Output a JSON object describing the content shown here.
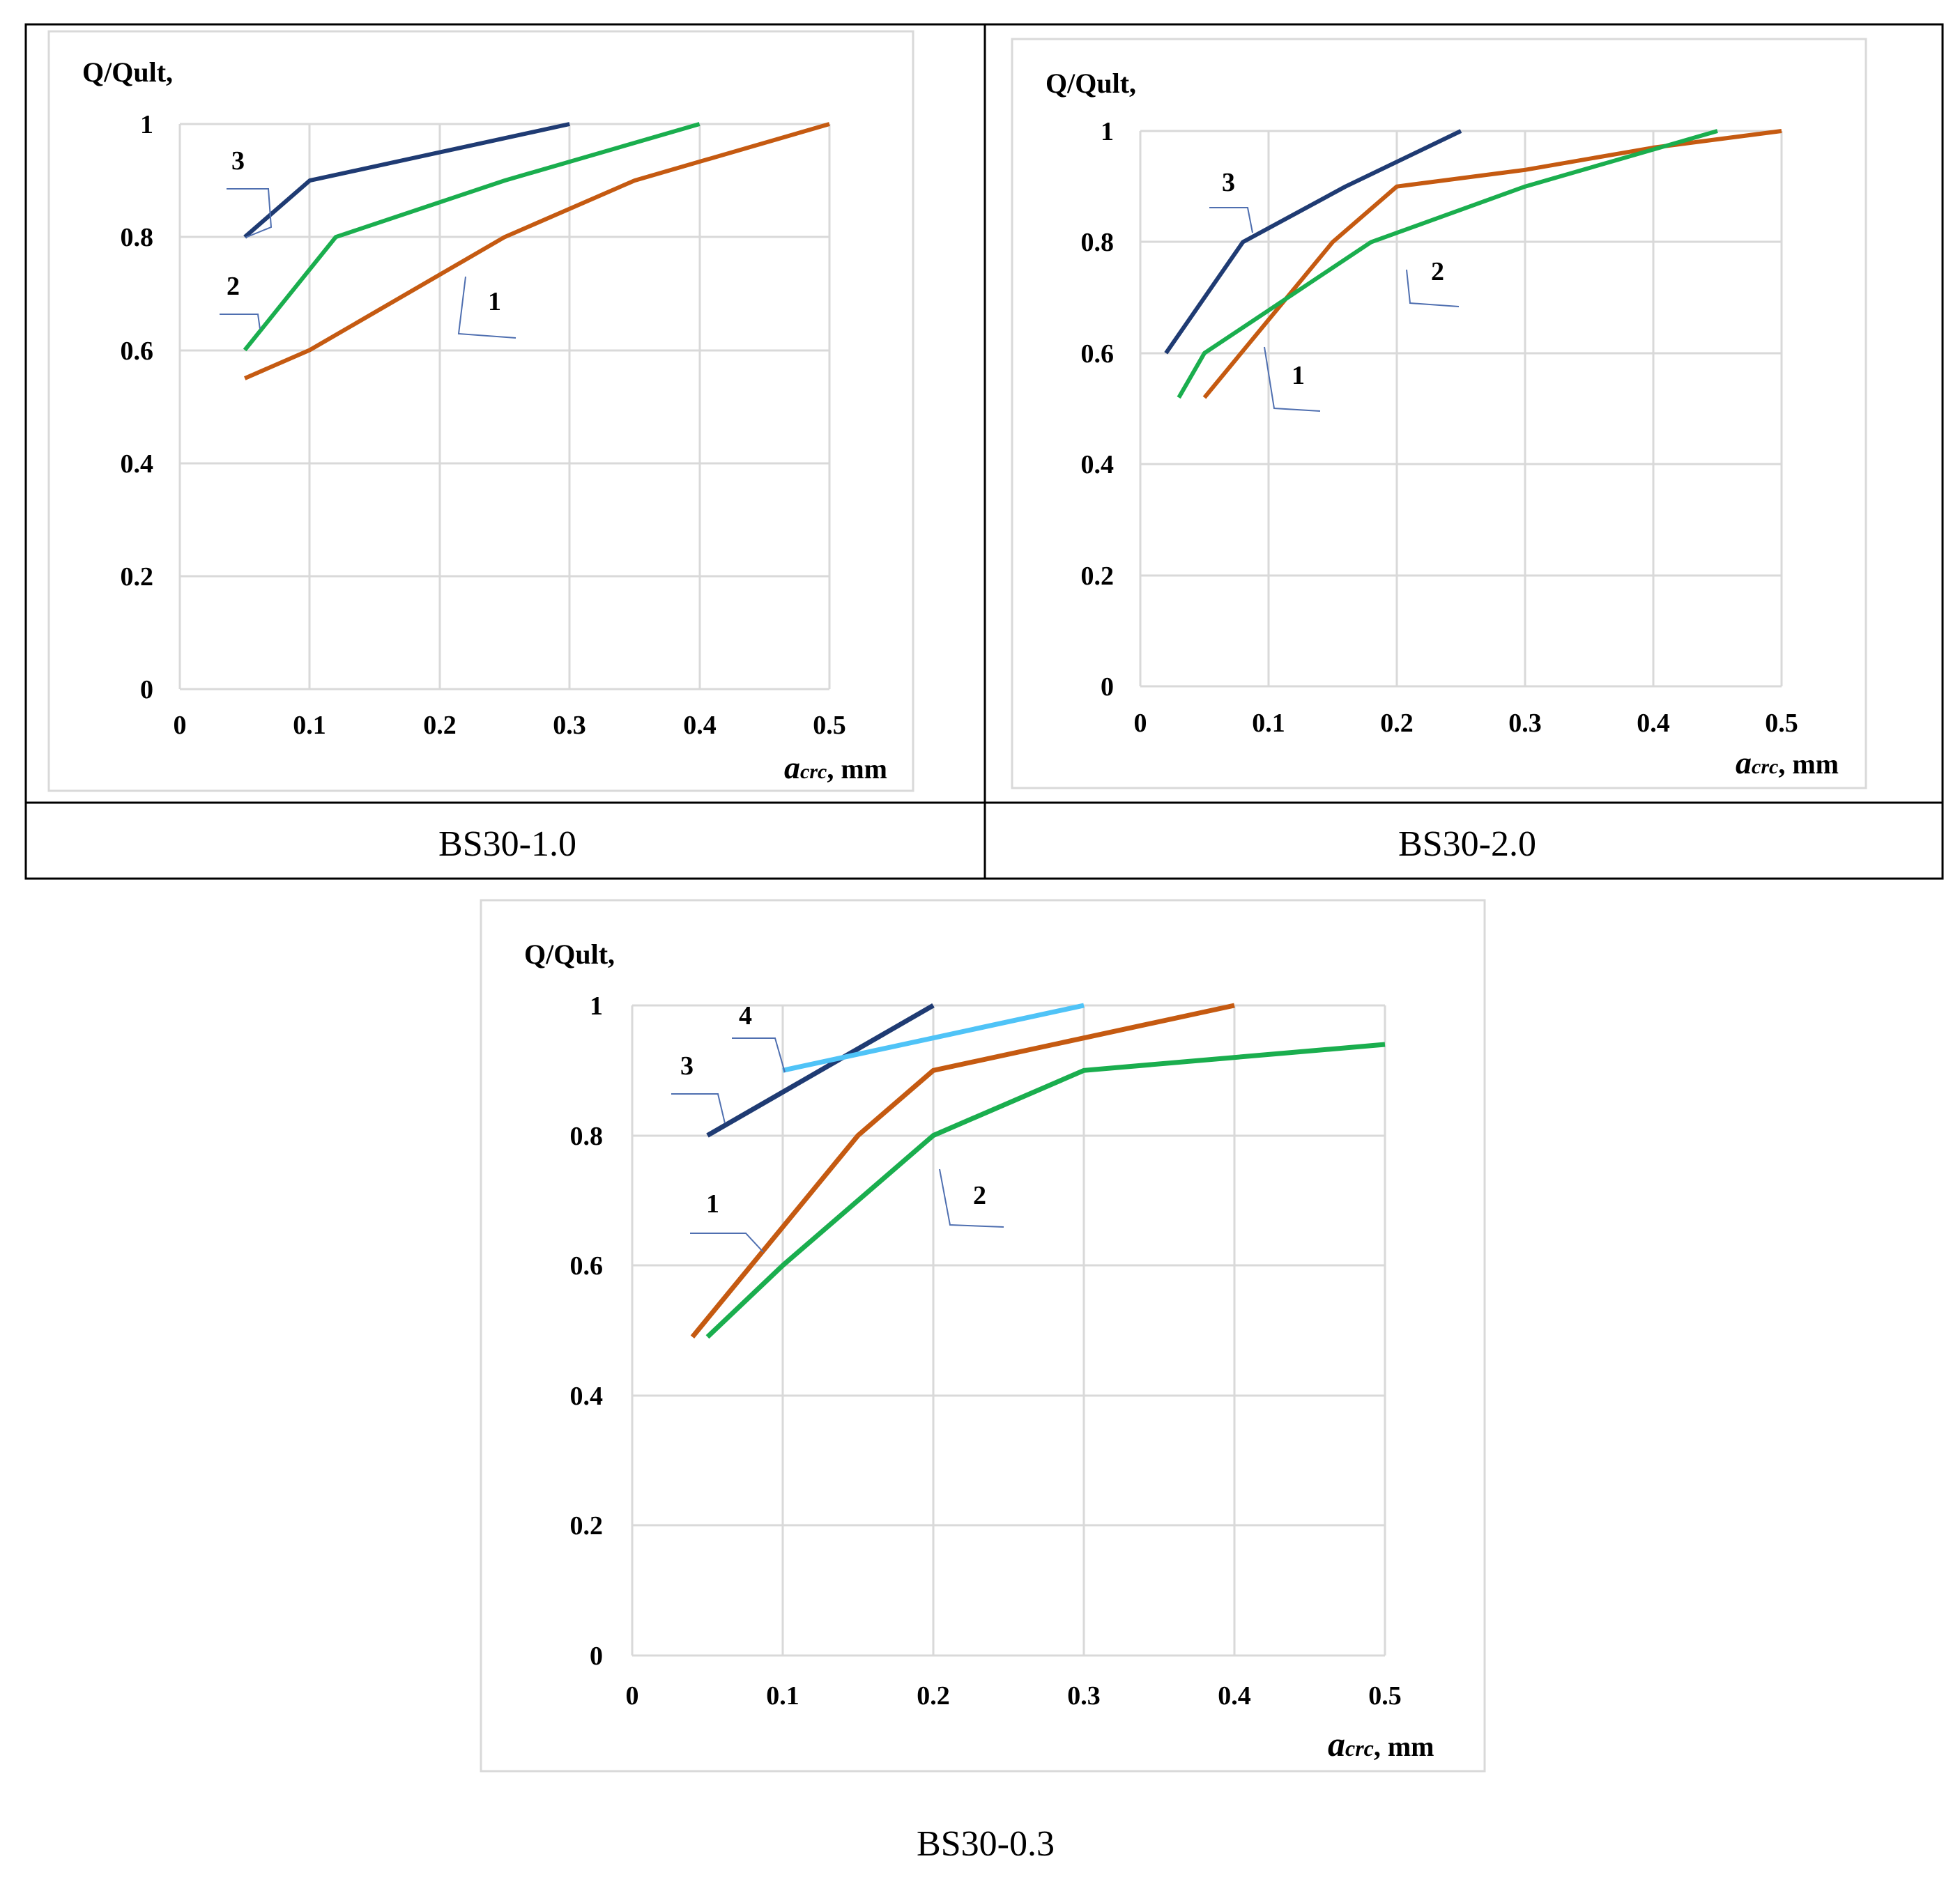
{
  "colors": {
    "series1": "#c55a11",
    "series2": "#1aae4e",
    "series3": "#1f3b73",
    "series4": "#4fc3f7",
    "grid": "#d9d9d9",
    "leader": "#4f6fb0"
  },
  "chart_data": [
    {
      "type": "line",
      "caption": "BS30-1.0",
      "ylabel": "Q/Qult,",
      "xlabel_symbol": "a",
      "xlabel_sub": "crc",
      "xlabel_unit": ", mm",
      "xlim": [
        0,
        0.5
      ],
      "ylim": [
        0,
        1
      ],
      "x_ticks": [
        "0",
        "0.1",
        "0.2",
        "0.3",
        "0.4",
        "0.5"
      ],
      "y_ticks": [
        "0",
        "0.2",
        "0.4",
        "0.6",
        "0.8",
        "1"
      ],
      "series": [
        {
          "name": "1",
          "color_key": "series1",
          "x": [
            0.05,
            0.1,
            0.25,
            0.35,
            0.5
          ],
          "y": [
            0.55,
            0.6,
            0.8,
            0.9,
            1.0
          ]
        },
        {
          "name": "2",
          "color_key": "series2",
          "x": [
            0.05,
            0.12,
            0.25,
            0.4
          ],
          "y": [
            0.6,
            0.8,
            0.9,
            1.0
          ]
        },
        {
          "name": "3",
          "color_key": "series3",
          "x": [
            0.05,
            0.1,
            0.3
          ],
          "y": [
            0.8,
            0.9,
            1.0
          ]
        }
      ]
    },
    {
      "type": "line",
      "caption": "BS30-2.0",
      "ylabel": "Q/Qult,",
      "xlabel_symbol": "a",
      "xlabel_sub": "crc",
      "xlabel_unit": ", mm",
      "xlim": [
        0,
        0.5
      ],
      "ylim": [
        0,
        1
      ],
      "x_ticks": [
        "0",
        "0.1",
        "0.2",
        "0.3",
        "0.4",
        "0.5"
      ],
      "y_ticks": [
        "0",
        "0.2",
        "0.4",
        "0.6",
        "0.8",
        "1"
      ],
      "series": [
        {
          "name": "1",
          "color_key": "series1",
          "x": [
            0.05,
            0.15,
            0.2,
            0.3,
            0.4,
            0.5
          ],
          "y": [
            0.52,
            0.8,
            0.9,
            0.93,
            0.97,
            1.0
          ]
        },
        {
          "name": "2",
          "color_key": "series2",
          "x": [
            0.03,
            0.05,
            0.18,
            0.3,
            0.45
          ],
          "y": [
            0.52,
            0.6,
            0.8,
            0.9,
            1.0
          ]
        },
        {
          "name": "3",
          "color_key": "series3",
          "x": [
            0.02,
            0.08,
            0.16,
            0.25
          ],
          "y": [
            0.6,
            0.8,
            0.9,
            1.0
          ]
        }
      ]
    },
    {
      "type": "line",
      "caption": "BS30-0.3",
      "ylabel": "Q/Qult,",
      "xlabel_symbol": "a",
      "xlabel_sub": "crc",
      "xlabel_unit": ", mm",
      "xlim": [
        0,
        0.5
      ],
      "ylim": [
        0,
        1
      ],
      "x_ticks": [
        "0",
        "0.1",
        "0.2",
        "0.3",
        "0.4",
        "0.5"
      ],
      "y_ticks": [
        "0",
        "0.2",
        "0.4",
        "0.6",
        "0.8",
        "1"
      ],
      "series": [
        {
          "name": "1",
          "color_key": "series1",
          "x": [
            0.04,
            0.15,
            0.2,
            0.3,
            0.4
          ],
          "y": [
            0.49,
            0.8,
            0.9,
            0.95,
            1.0
          ]
        },
        {
          "name": "2",
          "color_key": "series2",
          "x": [
            0.05,
            0.1,
            0.2,
            0.3,
            0.5
          ],
          "y": [
            0.49,
            0.6,
            0.8,
            0.9,
            0.94
          ]
        },
        {
          "name": "3",
          "color_key": "series3",
          "x": [
            0.05,
            0.2
          ],
          "y": [
            0.8,
            1.0
          ]
        },
        {
          "name": "4",
          "color_key": "series4",
          "x": [
            0.1,
            0.3
          ],
          "y": [
            0.9,
            1.0
          ]
        }
      ]
    }
  ]
}
